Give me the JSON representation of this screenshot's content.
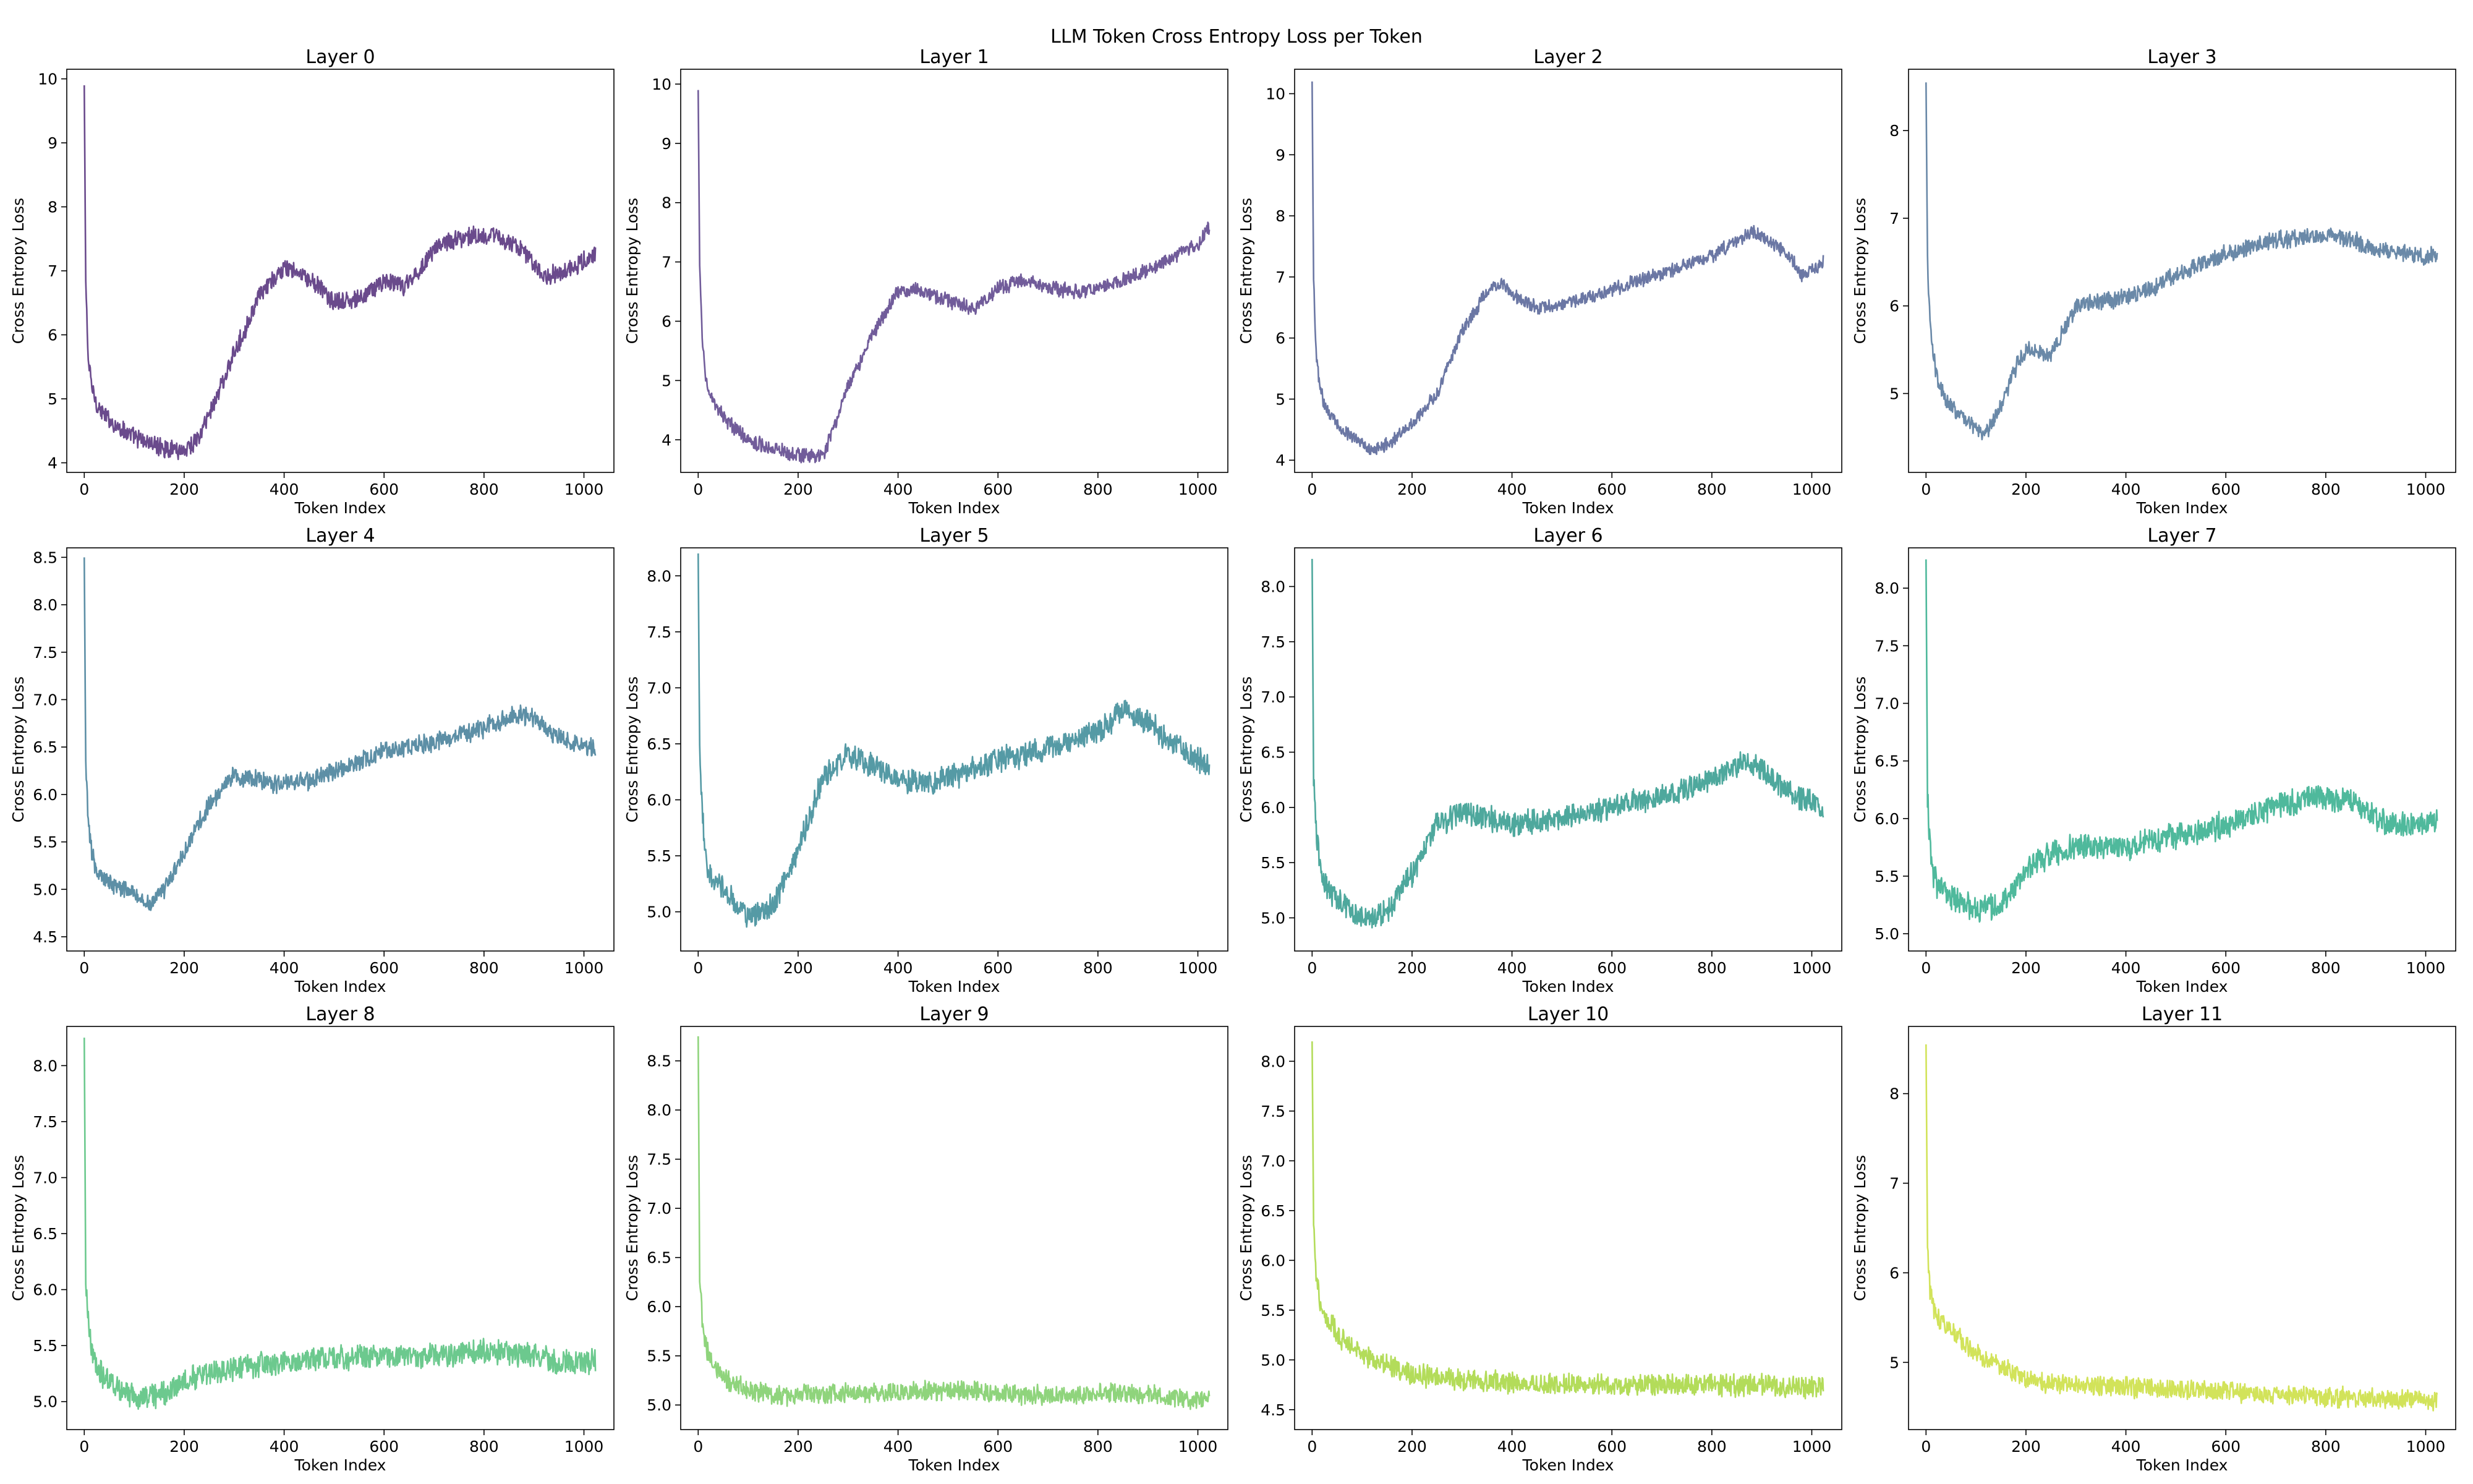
{
  "chart_data": {
    "type": "line",
    "title": "LLM Token Cross Entropy Loss per Token",
    "xlabel": "Token Index",
    "ylabel": "Cross Entropy Loss",
    "xlim": [
      -35,
      1060
    ],
    "xticks": [
      0,
      200,
      400,
      600,
      800,
      1000
    ],
    "n_tokens": 1024,
    "panels": [
      {
        "title": "Layer 0",
        "color": "#6a4a8c",
        "ylim": [
          3.85,
          10.15
        ],
        "yticks": [
          4,
          5,
          6,
          7,
          8,
          9,
          10
        ],
        "ytick_labels": [
          "4",
          "5",
          "6",
          "7",
          "8",
          "9",
          "10"
        ],
        "series": {
          "x": [
            0,
            3,
            8,
            15,
            25,
            40,
            60,
            100,
            150,
            200,
            230,
            260,
            300,
            350,
            400,
            430,
            470,
            500,
            550,
            600,
            640,
            680,
            700,
            740,
            780,
            820,
            860,
            900,
            920,
            960,
            1000,
            1020
          ],
          "y": [
            9.9,
            6.8,
            5.6,
            5.2,
            4.9,
            4.75,
            4.6,
            4.4,
            4.25,
            4.2,
            4.4,
            4.95,
            5.7,
            6.6,
            7.05,
            6.95,
            6.75,
            6.5,
            6.55,
            6.85,
            6.75,
            7.1,
            7.35,
            7.5,
            7.55,
            7.55,
            7.4,
            7.15,
            6.9,
            7.0,
            7.15,
            7.25
          ],
          "noise": 0.13
        }
      },
      {
        "title": "Layer 1",
        "color": "#715c9a",
        "ylim": [
          3.45,
          10.25
        ],
        "yticks": [
          4,
          5,
          6,
          7,
          8,
          9,
          10
        ],
        "ytick_labels": [
          "4",
          "5",
          "6",
          "7",
          "8",
          "9",
          "10"
        ],
        "series": {
          "x": [
            0,
            3,
            8,
            15,
            25,
            40,
            60,
            100,
            150,
            200,
            250,
            280,
            300,
            350,
            400,
            430,
            480,
            550,
            600,
            650,
            700,
            760,
            800,
            850,
            900,
            950,
            1000,
            1020
          ],
          "y": [
            9.9,
            6.9,
            5.7,
            5.1,
            4.7,
            4.5,
            4.3,
            4.0,
            3.85,
            3.75,
            3.7,
            4.4,
            4.9,
            5.8,
            6.5,
            6.55,
            6.4,
            6.2,
            6.55,
            6.7,
            6.55,
            6.5,
            6.55,
            6.7,
            6.85,
            7.1,
            7.3,
            7.55
          ],
          "noise": 0.11
        }
      },
      {
        "title": "Layer 2",
        "color": "#6b77a4",
        "ylim": [
          3.8,
          10.4
        ],
        "yticks": [
          4,
          5,
          6,
          7,
          8,
          9,
          10
        ],
        "ytick_labels": [
          "4",
          "5",
          "6",
          "7",
          "8",
          "9",
          "10"
        ],
        "series": {
          "x": [
            0,
            3,
            8,
            15,
            25,
            40,
            60,
            100,
            120,
            150,
            200,
            250,
            300,
            350,
            380,
            400,
            450,
            500,
            600,
            700,
            800,
            850,
            880,
            920,
            960,
            980,
            1000,
            1020
          ],
          "y": [
            10.2,
            6.9,
            5.8,
            5.2,
            4.9,
            4.7,
            4.5,
            4.3,
            4.15,
            4.25,
            4.6,
            5.1,
            6.1,
            6.75,
            6.9,
            6.7,
            6.5,
            6.55,
            6.8,
            7.05,
            7.35,
            7.6,
            7.75,
            7.55,
            7.3,
            7.0,
            7.1,
            7.25
          ],
          "noise": 0.1
        }
      },
      {
        "title": "Layer 3",
        "color": "#6a89a8",
        "ylim": [
          4.1,
          8.7
        ],
        "yticks": [
          5,
          6,
          7,
          8
        ],
        "ytick_labels": [
          "5",
          "6",
          "7",
          "8"
        ],
        "series": {
          "x": [
            0,
            3,
            8,
            15,
            25,
            40,
            60,
            80,
            100,
            120,
            150,
            180,
            200,
            250,
            300,
            350,
            400,
            450,
            500,
            600,
            700,
            800,
            850,
            900,
            950,
            1000,
            1020
          ],
          "y": [
            8.55,
            6.5,
            5.8,
            5.4,
            5.1,
            4.95,
            4.8,
            4.7,
            4.6,
            4.55,
            4.85,
            5.3,
            5.5,
            5.45,
            6.0,
            6.05,
            6.1,
            6.2,
            6.35,
            6.6,
            6.75,
            6.8,
            6.75,
            6.65,
            6.6,
            6.55,
            6.6
          ],
          "noise": 0.09
        }
      },
      {
        "title": "Layer 4",
        "color": "#5d8fa6",
        "ylim": [
          4.35,
          8.6
        ],
        "yticks": [
          4.5,
          5.0,
          5.5,
          6.0,
          6.5,
          7.0,
          7.5,
          8.0,
          8.5
        ],
        "ytick_labels": [
          "4.5",
          "5.0",
          "5.5",
          "6.0",
          "6.5",
          "7.0",
          "7.5",
          "8.0",
          "8.5"
        ],
        "series": {
          "x": [
            0,
            3,
            8,
            15,
            25,
            40,
            60,
            100,
            130,
            160,
            200,
            250,
            300,
            350,
            400,
            450,
            500,
            600,
            700,
            800,
            860,
            900,
            950,
            1000,
            1020
          ],
          "y": [
            8.5,
            6.3,
            5.7,
            5.4,
            5.2,
            5.1,
            5.05,
            4.95,
            4.85,
            5.0,
            5.4,
            5.9,
            6.2,
            6.15,
            6.1,
            6.15,
            6.25,
            6.45,
            6.55,
            6.7,
            6.85,
            6.8,
            6.6,
            6.5,
            6.5
          ],
          "noise": 0.09
        }
      },
      {
        "title": "Layer 5",
        "color": "#559aa5",
        "ylim": [
          4.65,
          8.25
        ],
        "yticks": [
          5.0,
          5.5,
          6.0,
          6.5,
          7.0,
          7.5,
          8.0
        ],
        "ytick_labels": [
          "5.0",
          "5.5",
          "6.0",
          "6.5",
          "7.0",
          "7.5",
          "8.0"
        ],
        "series": {
          "x": [
            0,
            3,
            8,
            15,
            25,
            40,
            60,
            100,
            150,
            200,
            250,
            300,
            350,
            400,
            450,
            500,
            600,
            700,
            800,
            850,
            900,
            950,
            1000,
            1020
          ],
          "y": [
            8.2,
            6.4,
            5.9,
            5.5,
            5.3,
            5.25,
            5.15,
            4.95,
            5.05,
            5.55,
            6.2,
            6.4,
            6.3,
            6.2,
            6.15,
            6.2,
            6.35,
            6.45,
            6.6,
            6.8,
            6.7,
            6.5,
            6.35,
            6.3
          ],
          "noise": 0.1
        }
      },
      {
        "title": "Layer 6",
        "color": "#4ea89d",
        "ylim": [
          4.7,
          8.35
        ],
        "yticks": [
          5.0,
          5.5,
          6.0,
          6.5,
          7.0,
          7.5,
          8.0
        ],
        "ytick_labels": [
          "5.0",
          "5.5",
          "6.0",
          "6.5",
          "7.0",
          "7.5",
          "8.0"
        ],
        "series": {
          "x": [
            0,
            3,
            8,
            15,
            25,
            40,
            60,
            100,
            150,
            200,
            250,
            300,
            400,
            500,
            600,
            700,
            800,
            860,
            900,
            950,
            1000,
            1020
          ],
          "y": [
            8.25,
            6.3,
            5.8,
            5.5,
            5.3,
            5.2,
            5.15,
            5.0,
            5.05,
            5.4,
            5.85,
            5.95,
            5.85,
            5.9,
            6.0,
            6.1,
            6.25,
            6.4,
            6.35,
            6.15,
            6.05,
            6.0
          ],
          "noise": 0.1
        }
      },
      {
        "title": "Layer 7",
        "color": "#4fb99c",
        "ylim": [
          4.85,
          8.35
        ],
        "yticks": [
          5.0,
          5.5,
          6.0,
          6.5,
          7.0,
          7.5,
          8.0
        ],
        "ytick_labels": [
          "5.0",
          "5.5",
          "6.0",
          "6.5",
          "7.0",
          "7.5",
          "8.0"
        ],
        "series": {
          "x": [
            0,
            3,
            8,
            15,
            25,
            40,
            60,
            100,
            150,
            200,
            250,
            300,
            400,
            500,
            600,
            700,
            780,
            850,
            900,
            950,
            1000,
            1020
          ],
          "y": [
            8.25,
            6.2,
            5.75,
            5.5,
            5.4,
            5.35,
            5.3,
            5.2,
            5.25,
            5.55,
            5.7,
            5.75,
            5.75,
            5.85,
            5.95,
            6.1,
            6.2,
            6.15,
            6.0,
            5.95,
            5.95,
            5.95
          ],
          "noise": 0.1
        }
      },
      {
        "title": "Layer 8",
        "color": "#6cc98e",
        "ylim": [
          4.75,
          8.35
        ],
        "yticks": [
          5.0,
          5.5,
          6.0,
          6.5,
          7.0,
          7.5,
          8.0
        ],
        "ytick_labels": [
          "5.0",
          "5.5",
          "6.0",
          "6.5",
          "7.0",
          "7.5",
          "8.0"
        ],
        "series": {
          "x": [
            0,
            3,
            8,
            15,
            25,
            40,
            60,
            100,
            150,
            200,
            300,
            400,
            500,
            600,
            700,
            800,
            850,
            900,
            950,
            1000,
            1020
          ],
          "y": [
            8.25,
            6.1,
            5.7,
            5.45,
            5.3,
            5.2,
            5.15,
            5.05,
            5.05,
            5.2,
            5.3,
            5.35,
            5.4,
            5.4,
            5.4,
            5.45,
            5.45,
            5.4,
            5.35,
            5.35,
            5.35
          ],
          "noise": 0.1
        }
      },
      {
        "title": "Layer 9",
        "color": "#8fd47c",
        "ylim": [
          4.75,
          8.85
        ],
        "yticks": [
          5.0,
          5.5,
          6.0,
          6.5,
          7.0,
          7.5,
          8.0,
          8.5
        ],
        "ytick_labels": [
          "5.0",
          "5.5",
          "6.0",
          "6.5",
          "7.0",
          "7.5",
          "8.0",
          "8.5"
        ],
        "series": {
          "x": [
            0,
            3,
            8,
            15,
            25,
            40,
            60,
            100,
            150,
            200,
            300,
            400,
            500,
            600,
            700,
            800,
            900,
            1000,
            1020
          ],
          "y": [
            8.75,
            6.3,
            5.9,
            5.6,
            5.45,
            5.35,
            5.25,
            5.15,
            5.1,
            5.1,
            5.12,
            5.12,
            5.15,
            5.12,
            5.1,
            5.12,
            5.1,
            5.05,
            5.05
          ],
          "noise": 0.09
        }
      },
      {
        "title": "Layer 10",
        "color": "#b3dc5a",
        "ylim": [
          4.3,
          8.35
        ],
        "yticks": [
          4.5,
          5.0,
          5.5,
          6.0,
          6.5,
          7.0,
          7.5,
          8.0
        ],
        "ytick_labels": [
          "4.5",
          "5.0",
          "5.5",
          "6.0",
          "6.5",
          "7.0",
          "7.5",
          "8.0"
        ],
        "series": {
          "x": [
            0,
            3,
            8,
            15,
            25,
            40,
            60,
            100,
            150,
            200,
            300,
            400,
            500,
            600,
            700,
            800,
            900,
            1000,
            1020
          ],
          "y": [
            8.2,
            6.4,
            5.9,
            5.6,
            5.45,
            5.35,
            5.2,
            5.05,
            4.95,
            4.85,
            4.8,
            4.78,
            4.75,
            4.75,
            4.75,
            4.75,
            4.75,
            4.72,
            4.72
          ],
          "noise": 0.1
        }
      },
      {
        "title": "Layer 11",
        "color": "#d2e35a",
        "ylim": [
          4.25,
          8.75
        ],
        "yticks": [
          5,
          6,
          7,
          8
        ],
        "ytick_labels": [
          "5",
          "6",
          "7",
          "8"
        ],
        "series": {
          "x": [
            0,
            3,
            8,
            15,
            25,
            40,
            60,
            100,
            150,
            200,
            300,
            400,
            500,
            600,
            700,
            800,
            900,
            1000,
            1020
          ],
          "y": [
            8.55,
            6.3,
            5.8,
            5.6,
            5.5,
            5.4,
            5.3,
            5.1,
            4.95,
            4.8,
            4.75,
            4.72,
            4.7,
            4.68,
            4.65,
            4.62,
            4.6,
            4.58,
            4.58
          ],
          "noise": 0.1
        }
      }
    ]
  }
}
